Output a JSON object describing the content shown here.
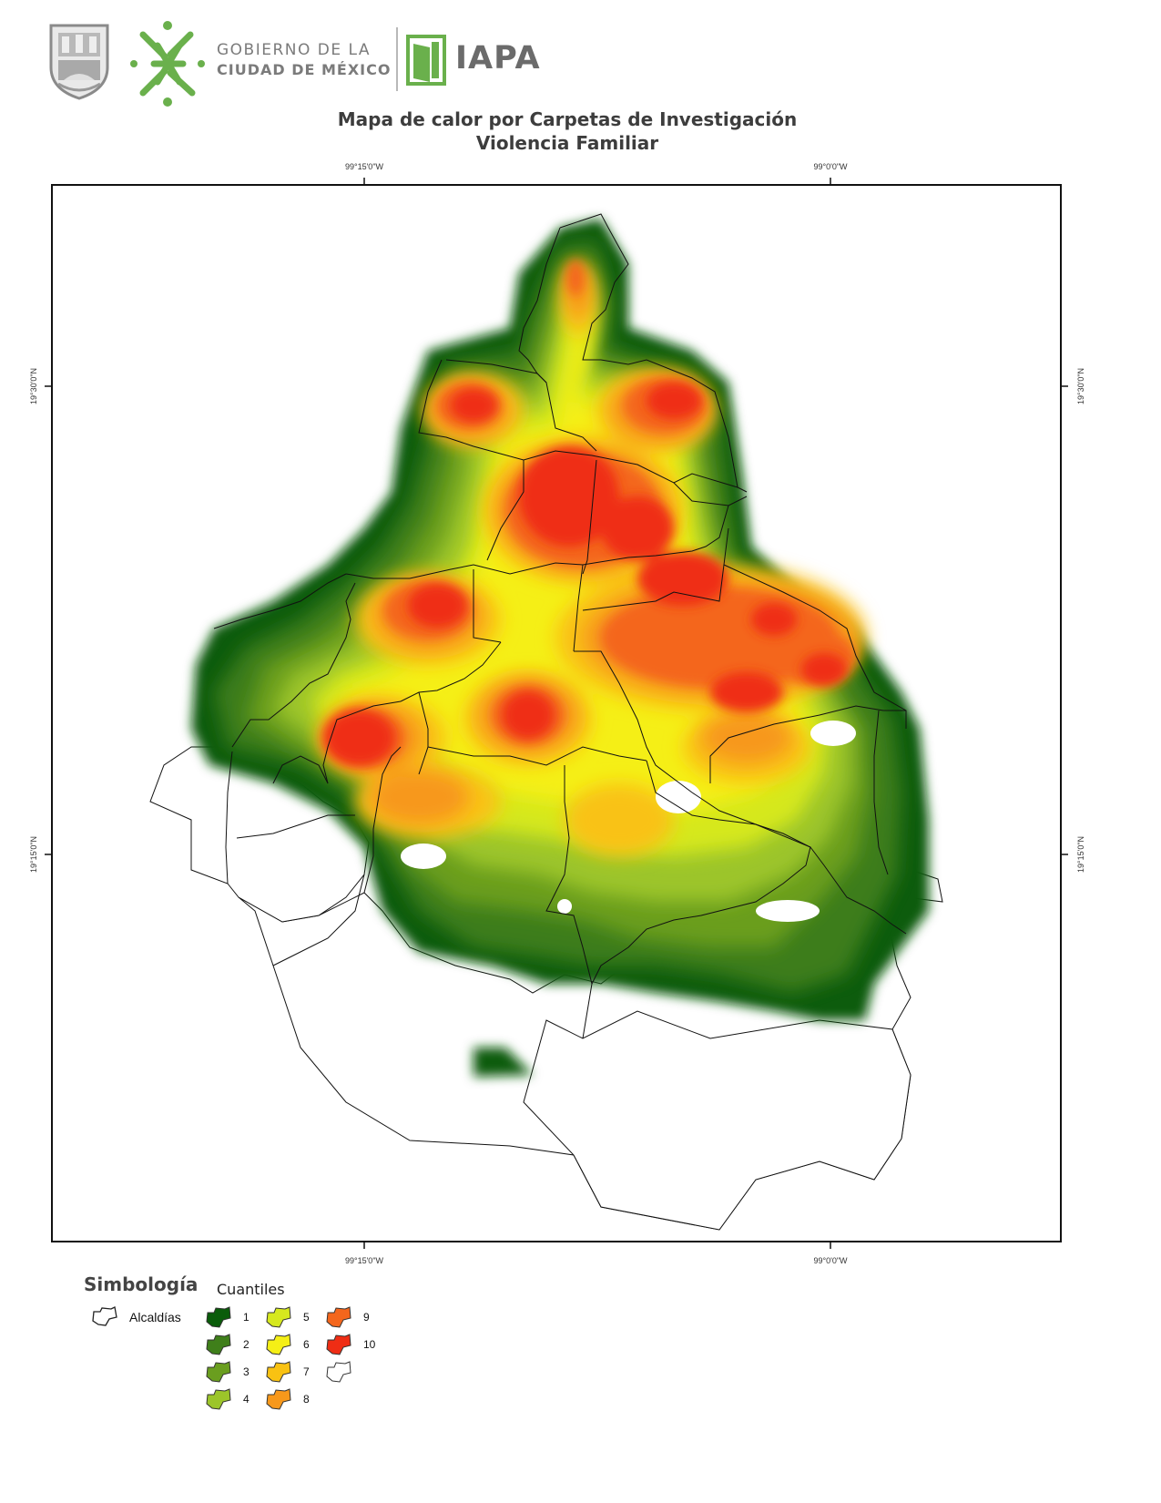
{
  "header": {
    "gov_line1": "GOBIERNO DE LA",
    "gov_line2": "CIUDAD DE MÉXICO",
    "org_name": "IAPA",
    "shield_icon": "cdmx-shield-icon",
    "gov_logo_icon": "cdmx-government-logo-icon",
    "iapa_logo_icon": "iapa-door-logo-icon",
    "brand_green": "#6ab04c"
  },
  "title": {
    "line1": "Mapa de calor por Carpetas de Investigación",
    "line2": "Violencia Familiar"
  },
  "map": {
    "coordinates": {
      "top": [
        "99°15'0\"W",
        "99°0'0\"W"
      ],
      "bottom": [
        "99°15'0\"W",
        "99°0'0\"W"
      ],
      "left": [
        "19°30'0\"N",
        "19°15'0\"N"
      ],
      "right": [
        "19°30'0\"N",
        "19°15'0\"N"
      ]
    }
  },
  "legend": {
    "title": "Simbología",
    "subtitle": "Cuantiles",
    "alcaldias_label": "Alcaldías",
    "quantiles": [
      {
        "label": "1",
        "color": "#0a5c0a"
      },
      {
        "label": "2",
        "color": "#3f7f1a"
      },
      {
        "label": "3",
        "color": "#6a9e1f"
      },
      {
        "label": "4",
        "color": "#9cc52a"
      },
      {
        "label": "5",
        "color": "#d6e81e"
      },
      {
        "label": "6",
        "color": "#f5ef16"
      },
      {
        "label": "7",
        "color": "#f9c212"
      },
      {
        "label": "8",
        "color": "#f7981b"
      },
      {
        "label": "9",
        "color": "#f4661c"
      },
      {
        "label": "10",
        "color": "#ef2d14"
      },
      {
        "label": "",
        "color": "#ffffff"
      }
    ]
  }
}
